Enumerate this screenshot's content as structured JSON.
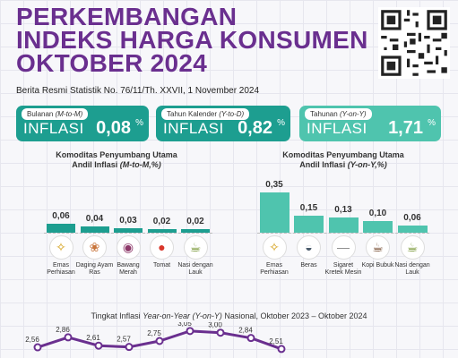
{
  "title": {
    "line1": "PERKEMBANGAN",
    "line2": "INDEKS HARGA KONSUMEN",
    "line3": "OKTOBER 2024"
  },
  "subtitle": "Berita Resmi Statistik No. 76/11/Th. XXVII, 1 November 2024",
  "cards": [
    {
      "caption": "Bulanan",
      "caption_italic": "(M-to-M)",
      "label": "INFLASI",
      "value": "0,08",
      "unit": "%"
    },
    {
      "caption": "Tahun Kalender",
      "caption_italic": "(Y-to-D)",
      "label": "INFLASI",
      "value": "0,82",
      "unit": "%"
    },
    {
      "caption": "Tahunan",
      "caption_italic": "(Y-on-Y)",
      "label": "INFLASI",
      "value": "1,71",
      "unit": "%"
    }
  ],
  "left_section": {
    "line1": "Komoditas Penyumbang Utama",
    "line2_prefix": "Andil Inflasi",
    "line2_italic": "(M-to-M,%)"
  },
  "right_section": {
    "line1": "Komoditas Penyumbang Utama",
    "line2_prefix": "Andil Inflasi",
    "line2_italic": "(Y-on-Y,%)"
  },
  "colors": {
    "purple": "#6a2f8f",
    "teal": "#1d9e90",
    "teal_light": "#4fc4ae",
    "line": "#6a2f8f"
  },
  "chart_data": [
    {
      "type": "bar",
      "categories": [
        "Emas Perhiasan",
        "Daging Ayam Ras",
        "Bawang Merah",
        "Tomat",
        "Nasi dengan Lauk"
      ],
      "values": [
        0.06,
        0.04,
        0.03,
        0.02,
        0.02
      ],
      "value_labels": [
        "0,06",
        "0,04",
        "0,03",
        "0,02",
        "0,02"
      ],
      "icons": [
        "gold-jewelry-icon",
        "chicken-icon",
        "shallot-icon",
        "tomato-icon",
        "rice-dish-icon"
      ]
    },
    {
      "type": "bar",
      "categories": [
        "Emas Perhiasan",
        "Beras",
        "Sigaret Kretek Mesin",
        "Kopi Bubuk",
        "Nasi dengan Lauk"
      ],
      "values": [
        0.35,
        0.15,
        0.13,
        0.1,
        0.06
      ],
      "value_labels": [
        "0,35",
        "0,15",
        "0,13",
        "0,10",
        "0,06"
      ],
      "icons": [
        "gold-jewelry-icon",
        "rice-bowl-icon",
        "cigarette-icon",
        "coffee-icon",
        "rice-dish-icon"
      ]
    },
    {
      "type": "line",
      "title_prefix": "Tingkat Inflasi",
      "title_italic": "Year-on-Year (Y-on-Y)",
      "title_suffix": "Nasional, Oktober 2023 – Oktober 2024",
      "values": [
        2.56,
        2.86,
        2.61,
        2.57,
        2.75,
        3.05,
        3.0,
        2.84,
        2.51
      ],
      "value_labels": [
        "2,56",
        "2,86",
        "2,61",
        "2,57",
        "2,75",
        "3,05",
        "3,00",
        "2,84",
        "2,51"
      ]
    }
  ]
}
